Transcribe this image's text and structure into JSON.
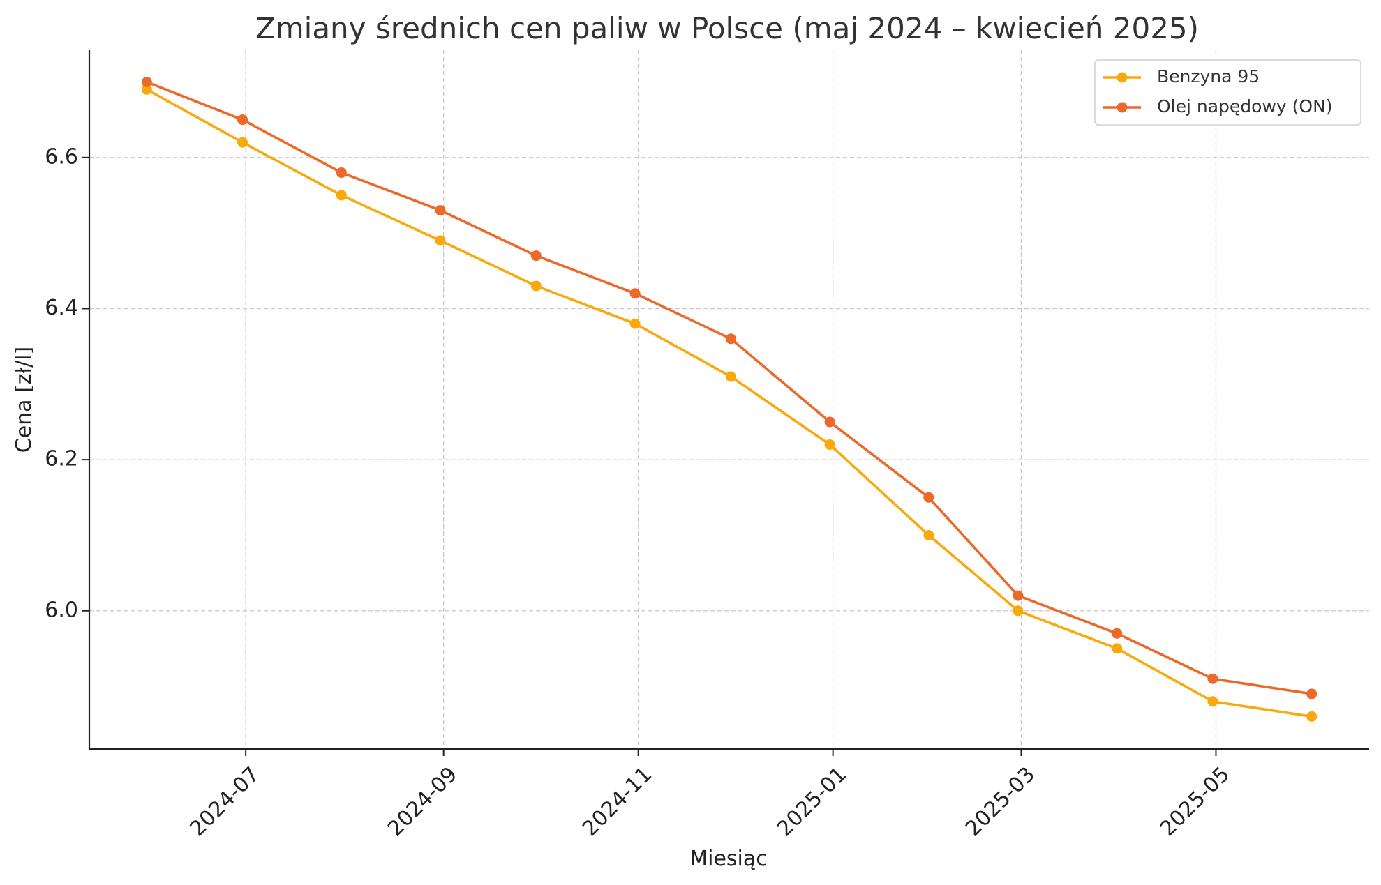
{
  "chart_data": {
    "type": "line",
    "title": "Zmiany średnich cen paliw w Polsce (maj 2024 – kwiecień 2025)",
    "xlabel": "Miesiąc",
    "ylabel": "Cena [zł/l]",
    "x": [
      "2024-05-31",
      "2024-06-30",
      "2024-07-31",
      "2024-08-31",
      "2024-09-30",
      "2024-10-31",
      "2024-11-30",
      "2024-12-31",
      "2025-01-31",
      "2025-02-28",
      "2025-03-31",
      "2025-04-30",
      "2025-05-31"
    ],
    "xticks": [
      "2024-07",
      "2024-09",
      "2024-11",
      "2025-01",
      "2025-03",
      "2025-05"
    ],
    "yticks": [
      "6.0",
      "6.2",
      "6.4",
      "6.6"
    ],
    "xlim": [
      "2024-05-13",
      "2025-06-18"
    ],
    "ylim": [
      5.817,
      6.742
    ],
    "grid": true,
    "legend_position": "top-right",
    "series": [
      {
        "name": "Benzyna 95",
        "color": "#F9A90C",
        "values": [
          6.69,
          6.62,
          6.55,
          6.49,
          6.43,
          6.38,
          6.31,
          6.22,
          6.1,
          6.0,
          5.95,
          5.88,
          5.86
        ]
      },
      {
        "name": "Olej napędowy (ON)",
        "color": "#EC692A",
        "values": [
          6.7,
          6.65,
          6.58,
          6.53,
          6.47,
          6.42,
          6.36,
          6.25,
          6.15,
          6.02,
          5.97,
          5.91,
          5.89
        ]
      }
    ]
  }
}
